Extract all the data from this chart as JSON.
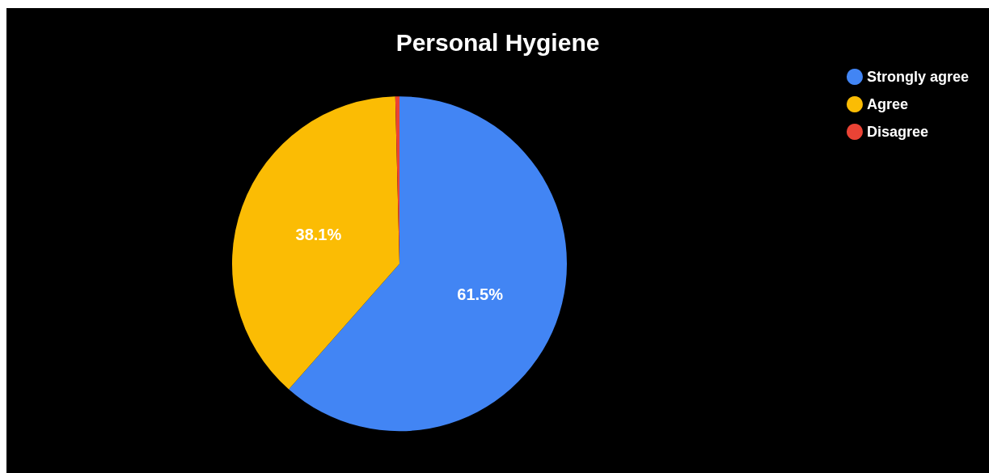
{
  "chart_data": {
    "type": "pie",
    "title": "Personal Hygiene",
    "categories": [
      "Strongly agree",
      "Agree",
      "Disagree"
    ],
    "values": [
      61.5,
      38.1,
      0.4
    ],
    "colors": [
      "#4285f4",
      "#fbbc04",
      "#ea4335"
    ],
    "value_labels": [
      "61.5%",
      "38.1%",
      null
    ],
    "legend": "top right"
  }
}
